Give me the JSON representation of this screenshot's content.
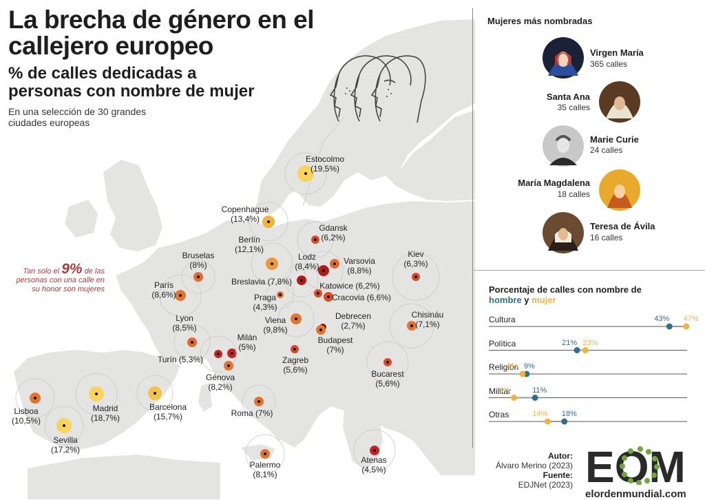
{
  "header": {
    "title_line1": "La brecha de género en el",
    "title_line2": "callejero europeo",
    "subtitle_line1": "% de calles dedicadas a",
    "subtitle_line2": "personas con nombre de mujer",
    "description_line1": "En una selección de 30 grandes",
    "description_line2": "ciudades europeas"
  },
  "note": {
    "prefix": "Tan solo el",
    "highlight": "9%",
    "suffix": "de las personas con una calle en su honor son mujeres"
  },
  "cities": [
    {
      "name": "Estocolmo",
      "value": "(19,5%)",
      "color": "#f8d45c"
    },
    {
      "name": "Copenhague",
      "value": "(13,4%)",
      "color": "#f0b43c"
    },
    {
      "name": "Gdansk",
      "value": "(6,2%)",
      "color": "#d94a25"
    },
    {
      "name": "Berlín",
      "value": "(12,1%)",
      "color": "#eb9a3a"
    },
    {
      "name": "Lodz",
      "value": "(8,4%)",
      "color": "#b31b1b"
    },
    {
      "name": "Varsovia",
      "value": "(8,8%)",
      "color": "#e46a2b"
    },
    {
      "name": "Kiev",
      "value": "(6,3%)",
      "color": "#d94a25"
    },
    {
      "name": "Bruselas",
      "value": "(8%)",
      "color": "#e46a2b"
    },
    {
      "name": "París",
      "value": "(8,6%)",
      "color": "#e2742f"
    },
    {
      "name": "Breslavia",
      "value": "(7,8%)",
      "color": "#b31b1b"
    },
    {
      "name": "Katowice",
      "value": "(6,2%)",
      "color": "#d94a25"
    },
    {
      "name": "Cracovia",
      "value": "(6,6%)",
      "color": "#d94a25"
    },
    {
      "name": "Praga",
      "value": "(4,3%)",
      "color": "#e46a2b"
    },
    {
      "name": "Viena",
      "value": "(9,8%)",
      "color": "#e2742f"
    },
    {
      "name": "Debrecen",
      "value": "(2,7%)",
      "color": "#7a1010"
    },
    {
      "name": "Chisináu",
      "value": "(7,1%)",
      "color": "#e2742f"
    },
    {
      "name": "Lyon",
      "value": "(8,5%)",
      "color": "#e46a2b"
    },
    {
      "name": "Budapest",
      "value": "(7%)",
      "color": "#e2742f"
    },
    {
      "name": "Milán",
      "value": "(5%)",
      "color": "#c62424"
    },
    {
      "name": "Turín",
      "value": "(5,3%)",
      "color": "#c62424"
    },
    {
      "name": "Zagreb",
      "value": "(5,6%)",
      "color": "#d94a25"
    },
    {
      "name": "Génova",
      "value": "(8,2%)",
      "color": "#e2742f"
    },
    {
      "name": "Bucarest",
      "value": "(5,6%)",
      "color": "#d94a25"
    },
    {
      "name": "Lisboa",
      "value": "(10,5%)",
      "color": "#e2742f"
    },
    {
      "name": "Madrid",
      "value": "(18,7%)",
      "color": "#f8d45c"
    },
    {
      "name": "Barcelona",
      "value": "(15,7%)",
      "color": "#f3c447"
    },
    {
      "name": "Roma",
      "value": "(7%)",
      "color": "#e2742f"
    },
    {
      "name": "Sevilla",
      "value": "(17,2%)",
      "color": "#f8d45c"
    },
    {
      "name": "Palermo",
      "value": "(8,1%)",
      "color": "#e2742f"
    },
    {
      "name": "Atenas",
      "value": "(4,5%)",
      "color": "#c62424"
    }
  ],
  "women_panel": {
    "title": "Mujeres más nombradas",
    "items": [
      {
        "name": "Virgen María",
        "count": "365 calles"
      },
      {
        "name": "Santa Ana",
        "count": "35 calles"
      },
      {
        "name": "Marie Curie",
        "count": "24 calles"
      },
      {
        "name": "María Magdalena",
        "count": "18 calles"
      },
      {
        "name": "Teresa de Ávila",
        "count": "16 calles"
      }
    ]
  },
  "categories_panel": {
    "title_line1": "Porcentaje de calles con nombre de",
    "men_word": "hombre",
    "and_word": "y",
    "women_word": "mujer",
    "men_color": "#2e6e8e",
    "women_color": "#f0b43c",
    "items": [
      {
        "label": "Cultura",
        "men_label": "43%",
        "women_label": "47%",
        "men": 43,
        "women": 47
      },
      {
        "label": "Política",
        "men_label": "21%",
        "women_label": "23%",
        "men": 21,
        "women": 23
      },
      {
        "label": "Religión",
        "men_label": "9%",
        "women_label": "8%",
        "men": 9,
        "women": 8
      },
      {
        "label": "Militar",
        "men_label": "11%",
        "women_label": "6%",
        "men": 11,
        "women": 6
      },
      {
        "label": "Otras",
        "men_label": "18%",
        "women_label": "14%",
        "men": 18,
        "women": 14
      }
    ]
  },
  "credits": {
    "author_label": "Autor:",
    "author": "Álvaro Merino (2023)",
    "source_label": "Fuente:",
    "source": "EDJNet (2023)"
  },
  "logo": {
    "mark": "EOM",
    "site": "elordenmundial.com"
  }
}
